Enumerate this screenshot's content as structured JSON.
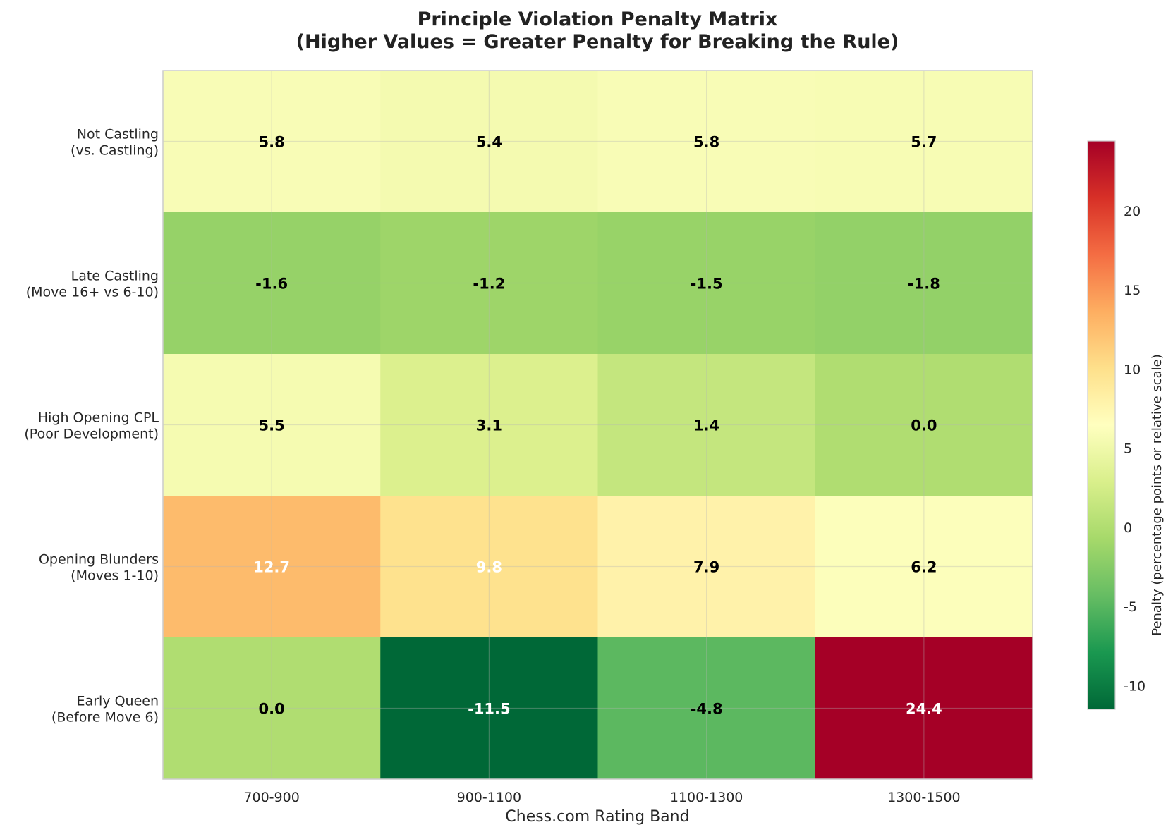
{
  "chart_data": {
    "type": "heatmap",
    "title": "Principle Violation Penalty Matrix",
    "subtitle": "(Higher Values = Greater Penalty for Breaking the Rule)",
    "xlabel": "Chess.com Rating Band",
    "ylabel": "",
    "x_categories": [
      "700-900",
      "900-1100",
      "1100-1300",
      "1300-1500"
    ],
    "y_categories": [
      [
        "Not Castling",
        "(vs. Castling)"
      ],
      [
        "Late Castling",
        "(Move 16+ vs 6-10)"
      ],
      [
        "High Opening CPL",
        "(Poor Development)"
      ],
      [
        "Opening Blunders",
        "(Moves 1-10)"
      ],
      [
        "Early Queen",
        "(Before Move 6)"
      ]
    ],
    "values": [
      [
        5.8,
        5.4,
        5.8,
        5.7
      ],
      [
        -1.6,
        -1.2,
        -1.5,
        -1.8
      ],
      [
        5.5,
        3.1,
        1.4,
        0.0
      ],
      [
        12.7,
        9.8,
        7.9,
        6.2
      ],
      [
        0.0,
        -11.5,
        -4.8,
        24.4
      ]
    ],
    "colormap": "RdYlGn_r",
    "vmin": -11.5,
    "vmax": 24.4,
    "grid": true,
    "colorbar": {
      "label": "Penalty (percentage points or relative scale)",
      "ticks": [
        -10,
        -5,
        0,
        5,
        10,
        15,
        20
      ],
      "tick_labels": [
        "-10",
        "-5",
        "0",
        "5",
        "10",
        "15",
        "20"
      ]
    },
    "label_color_threshold": 9.5,
    "label_colors": {
      "dark": "#000000",
      "light": "#ffffff"
    }
  }
}
